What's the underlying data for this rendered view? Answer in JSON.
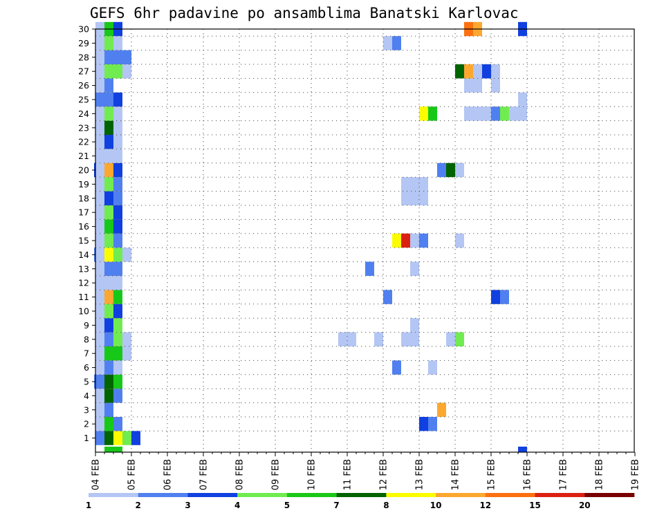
{
  "chart_data": {
    "type": "heatmap",
    "title": "GEFS 6hr padavine po ansamblima Banatski Karlovac",
    "x_labels": [
      "04 FEB",
      "05 FEB",
      "06 FEB",
      "07 FEB",
      "08 FEB",
      "09 FEB",
      "10 FEB",
      "11 FEB",
      "12 FEB",
      "13 FEB",
      "14 FEB",
      "15 FEB",
      "16 FEB",
      "17 FEB",
      "18 FEB",
      "19 FEB"
    ],
    "y_labels": [
      "1",
      "2",
      "3",
      "4",
      "5",
      "6",
      "7",
      "8",
      "9",
      "10",
      "11",
      "12",
      "13",
      "14",
      "15",
      "16",
      "17",
      "18",
      "19",
      "20",
      "21",
      "22",
      "23",
      "24",
      "25",
      "26",
      "27",
      "28",
      "29",
      "30"
    ],
    "x_unit": "6h step (4 steps per day)",
    "legend": {
      "position": "bottom",
      "labels": [
        "1",
        "2",
        "3",
        "4",
        "5",
        "7",
        "8",
        "10",
        "12",
        "15",
        "20"
      ],
      "colors": [
        "#b4c6f4",
        "#5080f0",
        "#1040e0",
        "#70ec50",
        "#18c818",
        "#006400",
        "#fcfc00",
        "#fca830",
        "#fc7010",
        "#dc2010",
        "#780000"
      ]
    },
    "grid": "dotted",
    "cells": [
      {
        "m": 1,
        "s": 0,
        "c": 1
      },
      {
        "m": 1,
        "s": 1,
        "c": 5
      },
      {
        "m": 1,
        "s": 2,
        "c": 6
      },
      {
        "m": 1,
        "s": 3,
        "c": 3
      },
      {
        "m": 1,
        "s": 4,
        "c": 2
      },
      {
        "m": 2,
        "s": 0,
        "c": 0
      },
      {
        "m": 2,
        "s": 1,
        "c": 4
      },
      {
        "m": 2,
        "s": 2,
        "c": 1
      },
      {
        "m": 2,
        "s": 36,
        "c": 2
      },
      {
        "m": 2,
        "s": 37,
        "c": 1
      },
      {
        "m": 3,
        "s": 0,
        "c": 0
      },
      {
        "m": 3,
        "s": 1,
        "c": 1
      },
      {
        "m": 3,
        "s": 38,
        "c": 7
      },
      {
        "m": 4,
        "s": 0,
        "c": 0
      },
      {
        "m": 4,
        "s": 1,
        "c": 5
      },
      {
        "m": 4,
        "s": 2,
        "c": 1
      },
      {
        "m": 5,
        "s": -1,
        "c": 1
      },
      {
        "m": 5,
        "s": 0,
        "c": 1
      },
      {
        "m": 5,
        "s": 1,
        "c": 5
      },
      {
        "m": 5,
        "s": 2,
        "c": 4
      },
      {
        "m": 6,
        "s": 0,
        "c": 0
      },
      {
        "m": 6,
        "s": 1,
        "c": 1
      },
      {
        "m": 6,
        "s": 2,
        "c": 0
      },
      {
        "m": 6,
        "s": 33,
        "c": 1
      },
      {
        "m": 6,
        "s": 37,
        "c": 0
      },
      {
        "m": 7,
        "s": 0,
        "c": 0
      },
      {
        "m": 7,
        "s": 1,
        "c": 4
      },
      {
        "m": 7,
        "s": 2,
        "c": 4
      },
      {
        "m": 7,
        "s": 3,
        "c": 0
      },
      {
        "m": 8,
        "s": 0,
        "c": 0
      },
      {
        "m": 8,
        "s": 1,
        "c": 1
      },
      {
        "m": 8,
        "s": 2,
        "c": 3
      },
      {
        "m": 8,
        "s": 3,
        "c": 0
      },
      {
        "m": 8,
        "s": 27,
        "c": 0
      },
      {
        "m": 8,
        "s": 28,
        "c": 0
      },
      {
        "m": 8,
        "s": 31,
        "c": 0
      },
      {
        "m": 8,
        "s": 34,
        "c": 0
      },
      {
        "m": 8,
        "s": 35,
        "c": 0
      },
      {
        "m": 8,
        "s": 39,
        "c": 0
      },
      {
        "m": 8,
        "s": 40,
        "c": 3
      },
      {
        "m": 9,
        "s": 0,
        "c": 0
      },
      {
        "m": 9,
        "s": 1,
        "c": 2
      },
      {
        "m": 9,
        "s": 2,
        "c": 3
      },
      {
        "m": 9,
        "s": 35,
        "c": 0
      },
      {
        "m": 10,
        "s": 0,
        "c": 0
      },
      {
        "m": 10,
        "s": 1,
        "c": 3
      },
      {
        "m": 10,
        "s": 2,
        "c": 2
      },
      {
        "m": 11,
        "s": 0,
        "c": 0
      },
      {
        "m": 11,
        "s": 1,
        "c": 7
      },
      {
        "m": 11,
        "s": 2,
        "c": 4
      },
      {
        "m": 11,
        "s": 32,
        "c": 1
      },
      {
        "m": 11,
        "s": 44,
        "c": 2
      },
      {
        "m": 11,
        "s": 45,
        "c": 1
      },
      {
        "m": 12,
        "s": 0,
        "c": 0
      },
      {
        "m": 12,
        "s": 1,
        "c": 0
      },
      {
        "m": 12,
        "s": 2,
        "c": 0
      },
      {
        "m": 13,
        "s": 0,
        "c": 0
      },
      {
        "m": 13,
        "s": 1,
        "c": 1
      },
      {
        "m": 13,
        "s": 2,
        "c": 1
      },
      {
        "m": 13,
        "s": 30,
        "c": 1
      },
      {
        "m": 13,
        "s": 35,
        "c": 0
      },
      {
        "m": 14,
        "s": -1,
        "c": 1
      },
      {
        "m": 14,
        "s": 0,
        "c": 0
      },
      {
        "m": 14,
        "s": 1,
        "c": 6
      },
      {
        "m": 14,
        "s": 2,
        "c": 3
      },
      {
        "m": 14,
        "s": 3,
        "c": 0
      },
      {
        "m": 15,
        "s": 0,
        "c": 0
      },
      {
        "m": 15,
        "s": 1,
        "c": 3
      },
      {
        "m": 15,
        "s": 2,
        "c": 1
      },
      {
        "m": 15,
        "s": 33,
        "c": 6
      },
      {
        "m": 15,
        "s": 34,
        "c": 9
      },
      {
        "m": 15,
        "s": 35,
        "c": 0
      },
      {
        "m": 15,
        "s": 36,
        "c": 1
      },
      {
        "m": 15,
        "s": 40,
        "c": 0
      },
      {
        "m": 16,
        "s": 0,
        "c": 0
      },
      {
        "m": 16,
        "s": 1,
        "c": 4
      },
      {
        "m": 16,
        "s": 2,
        "c": 2
      },
      {
        "m": 17,
        "s": 0,
        "c": 0
      },
      {
        "m": 17,
        "s": 1,
        "c": 3
      },
      {
        "m": 17,
        "s": 2,
        "c": 2
      },
      {
        "m": 18,
        "s": 0,
        "c": 0
      },
      {
        "m": 18,
        "s": 1,
        "c": 2
      },
      {
        "m": 18,
        "s": 2,
        "c": 1
      },
      {
        "m": 18,
        "s": 34,
        "c": 0
      },
      {
        "m": 18,
        "s": 35,
        "c": 0
      },
      {
        "m": 18,
        "s": 36,
        "c": 0
      },
      {
        "m": 19,
        "s": 0,
        "c": 0
      },
      {
        "m": 19,
        "s": 1,
        "c": 3
      },
      {
        "m": 19,
        "s": 2,
        "c": 1
      },
      {
        "m": 19,
        "s": 34,
        "c": 0
      },
      {
        "m": 19,
        "s": 35,
        "c": 0
      },
      {
        "m": 19,
        "s": 36,
        "c": 0
      },
      {
        "m": 20,
        "s": -1,
        "c": 2
      },
      {
        "m": 20,
        "s": 0,
        "c": 0
      },
      {
        "m": 20,
        "s": 1,
        "c": 7
      },
      {
        "m": 20,
        "s": 2,
        "c": 2
      },
      {
        "m": 20,
        "s": 38,
        "c": 1
      },
      {
        "m": 20,
        "s": 39,
        "c": 5
      },
      {
        "m": 20,
        "s": 40,
        "c": 0
      },
      {
        "m": 21,
        "s": 0,
        "c": 0
      },
      {
        "m": 21,
        "s": 1,
        "c": 0
      },
      {
        "m": 21,
        "s": 2,
        "c": 0
      },
      {
        "m": 22,
        "s": 0,
        "c": 0
      },
      {
        "m": 22,
        "s": 1,
        "c": 2
      },
      {
        "m": 22,
        "s": 2,
        "c": 0
      },
      {
        "m": 23,
        "s": 0,
        "c": 0
      },
      {
        "m": 23,
        "s": 1,
        "c": 5
      },
      {
        "m": 23,
        "s": 2,
        "c": 0
      },
      {
        "m": 24,
        "s": 0,
        "c": 0
      },
      {
        "m": 24,
        "s": 1,
        "c": 3
      },
      {
        "m": 24,
        "s": 2,
        "c": 0
      },
      {
        "m": 24,
        "s": 36,
        "c": 6
      },
      {
        "m": 24,
        "s": 37,
        "c": 4
      },
      {
        "m": 24,
        "s": 41,
        "c": 0
      },
      {
        "m": 24,
        "s": 42,
        "c": 0
      },
      {
        "m": 24,
        "s": 43,
        "c": 0
      },
      {
        "m": 24,
        "s": 44,
        "c": 1
      },
      {
        "m": 24,
        "s": 45,
        "c": 3
      },
      {
        "m": 24,
        "s": 46,
        "c": 0
      },
      {
        "m": 24,
        "s": 47,
        "c": 0
      },
      {
        "m": 25,
        "s": 0,
        "c": 1
      },
      {
        "m": 25,
        "s": 1,
        "c": 1
      },
      {
        "m": 25,
        "s": 2,
        "c": 2
      },
      {
        "m": 25,
        "s": 47,
        "c": 0
      },
      {
        "m": 26,
        "s": 0,
        "c": 0
      },
      {
        "m": 26,
        "s": 1,
        "c": 1
      },
      {
        "m": 26,
        "s": 41,
        "c": 0
      },
      {
        "m": 26,
        "s": 42,
        "c": 0
      },
      {
        "m": 26,
        "s": 44,
        "c": 0
      },
      {
        "m": 27,
        "s": 0,
        "c": 0
      },
      {
        "m": 27,
        "s": 1,
        "c": 3
      },
      {
        "m": 27,
        "s": 2,
        "c": 3
      },
      {
        "m": 27,
        "s": 3,
        "c": 0
      },
      {
        "m": 27,
        "s": 40,
        "c": 5
      },
      {
        "m": 27,
        "s": 41,
        "c": 7
      },
      {
        "m": 27,
        "s": 42,
        "c": 0
      },
      {
        "m": 27,
        "s": 43,
        "c": 2
      },
      {
        "m": 27,
        "s": 44,
        "c": 0
      },
      {
        "m": 28,
        "s": 0,
        "c": 0
      },
      {
        "m": 28,
        "s": 1,
        "c": 1
      },
      {
        "m": 28,
        "s": 2,
        "c": 1
      },
      {
        "m": 28,
        "s": 3,
        "c": 1
      },
      {
        "m": 29,
        "s": 0,
        "c": 0
      },
      {
        "m": 29,
        "s": 1,
        "c": 3
      },
      {
        "m": 29,
        "s": 2,
        "c": 0
      },
      {
        "m": 29,
        "s": 32,
        "c": 0
      },
      {
        "m": 29,
        "s": 33,
        "c": 1
      },
      {
        "m": 30,
        "s": 0,
        "c": 0
      },
      {
        "m": 30,
        "s": 1,
        "c": 4
      },
      {
        "m": 30,
        "s": 2,
        "c": 2
      },
      {
        "m": 30,
        "s": 41,
        "c": 8
      },
      {
        "m": 30,
        "s": 42,
        "c": 7
      },
      {
        "m": 30,
        "s": 47,
        "c": 2
      },
      {
        "m": 0,
        "s": 1,
        "c": 4
      },
      {
        "m": 0,
        "s": 2,
        "c": 4
      },
      {
        "m": 0,
        "s": 47,
        "c": 2
      }
    ]
  }
}
